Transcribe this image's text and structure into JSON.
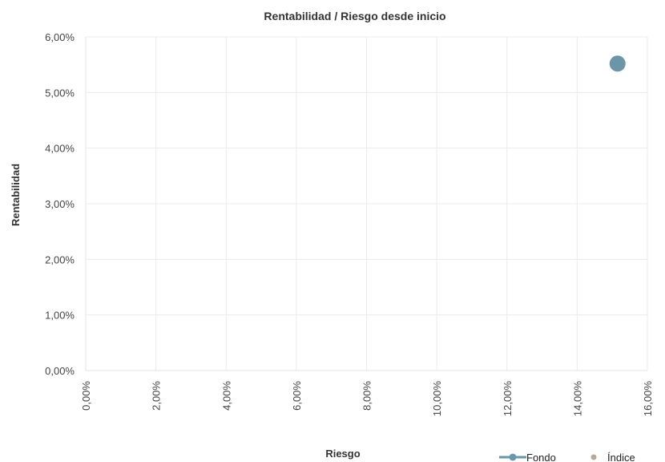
{
  "chart_data": {
    "type": "scatter",
    "title": "Rentabilidad / Riesgo desde inicio",
    "xlabel": "Riesgo",
    "ylabel": "Rentabilidad",
    "xlim": [
      0,
      16
    ],
    "ylim": [
      0,
      6
    ],
    "x_ticks": [
      0,
      2,
      4,
      6,
      8,
      10,
      12,
      14,
      16
    ],
    "x_tick_labels": [
      "0,00%",
      "2,00%",
      "4,00%",
      "6,00%",
      "8,00%",
      "10,00%",
      "12,00%",
      "14,00%",
      "16,00%"
    ],
    "y_ticks": [
      0,
      1,
      2,
      3,
      4,
      5,
      6
    ],
    "y_tick_labels": [
      "0,00%",
      "1,00%",
      "2,00%",
      "3,00%",
      "4,00%",
      "5,00%",
      "6,00%"
    ],
    "grid": true,
    "legend_position": "bottom-right",
    "series": [
      {
        "name": "Fondo",
        "color": "#6a96a8",
        "points": [
          {
            "x": 15.15,
            "y": 5.52
          }
        ]
      },
      {
        "name": "Índice",
        "color": "#b8a99a",
        "points": []
      }
    ]
  }
}
